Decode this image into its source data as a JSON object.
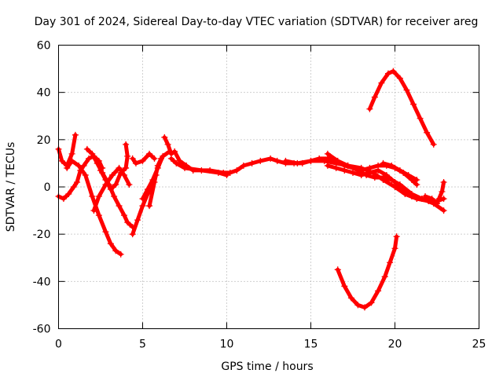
{
  "chart_data": {
    "type": "scatter",
    "title": "Day 301 of 2024, Sidereal Day-to-day VTEC variation (SDTVAR) for receiver areg",
    "xlabel": "GPS time / hours",
    "ylabel": "SDTVAR / TECUs",
    "xlim": [
      0,
      25
    ],
    "ylim": [
      -60,
      60
    ],
    "xticks": [
      0,
      5,
      10,
      15,
      20,
      25
    ],
    "yticks": [
      -60,
      -40,
      -20,
      0,
      20,
      40,
      60
    ],
    "xtick_labels": [
      "0",
      "5",
      "10",
      "15",
      "20",
      "25"
    ],
    "ytick_labels": [
      "-60",
      "-40",
      "-20",
      "0",
      "20",
      "40",
      "60"
    ],
    "grid": true,
    "marker": "plus",
    "color": "#ff0000",
    "series": [
      {
        "name": "s1",
        "points": [
          [
            0,
            -4
          ],
          [
            0.3,
            -5
          ],
          [
            0.6,
            -3
          ],
          [
            0.9,
            0
          ],
          [
            1.1,
            2
          ],
          [
            1.3,
            7
          ],
          [
            1.5,
            9
          ],
          [
            1.8,
            12
          ],
          [
            2.1,
            13
          ],
          [
            2.4,
            11
          ],
          [
            2.6,
            8
          ]
        ]
      },
      {
        "name": "s2",
        "points": [
          [
            0,
            16
          ],
          [
            0.2,
            11
          ],
          [
            0.5,
            9
          ],
          [
            0.8,
            14
          ],
          [
            1.0,
            22
          ]
        ]
      },
      {
        "name": "s3",
        "points": [
          [
            0.5,
            8
          ],
          [
            0.8,
            11
          ],
          [
            1.2,
            9
          ],
          [
            1.6,
            5
          ],
          [
            2.0,
            -4
          ],
          [
            2.4,
            -12
          ],
          [
            2.8,
            -19
          ],
          [
            3.1,
            -24
          ],
          [
            3.4,
            -27
          ],
          [
            3.7,
            -28.5
          ]
        ]
      },
      {
        "name": "s4",
        "points": [
          [
            1.7,
            16
          ],
          [
            2.0,
            14
          ],
          [
            2.3,
            10
          ],
          [
            2.6,
            6
          ],
          [
            3.0,
            1
          ],
          [
            3.3,
            -4
          ],
          [
            3.6,
            -8
          ],
          [
            3.9,
            -12
          ],
          [
            4.1,
            -15
          ],
          [
            4.4,
            -17
          ]
        ]
      },
      {
        "name": "s5",
        "points": [
          [
            2.1,
            -10
          ],
          [
            2.4,
            -4
          ],
          [
            2.8,
            1
          ],
          [
            3.2,
            5
          ],
          [
            3.6,
            8
          ],
          [
            3.9,
            5
          ],
          [
            4.2,
            1
          ]
        ]
      },
      {
        "name": "s6",
        "points": [
          [
            2.5,
            7
          ],
          [
            2.8,
            3
          ],
          [
            3.1,
            -1
          ],
          [
            3.4,
            1
          ],
          [
            3.7,
            6
          ],
          [
            4.0,
            8
          ],
          [
            4.1,
            13
          ],
          [
            4.0,
            18
          ]
        ]
      },
      {
        "name": "s7",
        "points": [
          [
            4.4,
            -20
          ],
          [
            4.7,
            -14
          ],
          [
            5.0,
            -8
          ],
          [
            5.3,
            -3
          ],
          [
            5.6,
            2
          ],
          [
            5.8,
            5
          ]
        ]
      },
      {
        "name": "s8",
        "points": [
          [
            5.4,
            -8
          ],
          [
            5.7,
            2
          ],
          [
            5.9,
            9
          ],
          [
            6.1,
            12
          ]
        ]
      },
      {
        "name": "s9",
        "points": [
          [
            4.4,
            12
          ],
          [
            4.6,
            10
          ],
          [
            5.0,
            11
          ],
          [
            5.4,
            14
          ],
          [
            5.7,
            12
          ]
        ]
      },
      {
        "name": "s10",
        "points": [
          [
            5.0,
            -5
          ],
          [
            5.3,
            -1
          ],
          [
            5.6,
            3
          ],
          [
            5.9,
            8
          ],
          [
            6.2,
            13
          ],
          [
            6.6,
            15
          ]
        ]
      },
      {
        "name": "s11",
        "points": [
          [
            6.3,
            21
          ],
          [
            6.5,
            18
          ],
          [
            6.7,
            14
          ],
          [
            6.9,
            15
          ],
          [
            7.2,
            11
          ],
          [
            7.6,
            9
          ],
          [
            8.0,
            7
          ],
          [
            9.0,
            7
          ],
          [
            9.8,
            6
          ],
          [
            10.2,
            6
          ],
          [
            10.6,
            7
          ],
          [
            11.0,
            9
          ],
          [
            11.5,
            10
          ],
          [
            12.0,
            11
          ],
          [
            12.6,
            12
          ],
          [
            13.0,
            11
          ],
          [
            13.5,
            10
          ],
          [
            14.0,
            10
          ],
          [
            14.5,
            10
          ],
          [
            15.0,
            11
          ],
          [
            15.5,
            12
          ],
          [
            16.0,
            12
          ],
          [
            16.5,
            11
          ],
          [
            17.0,
            9
          ],
          [
            17.5,
            8
          ],
          [
            18.0,
            7
          ],
          [
            18.5,
            8
          ],
          [
            19.0,
            9
          ],
          [
            19.5,
            9
          ],
          [
            20.0,
            8
          ],
          [
            20.5,
            6
          ],
          [
            21.0,
            3
          ],
          [
            21.3,
            1
          ]
        ]
      },
      {
        "name": "s12",
        "points": [
          [
            6.7,
            12
          ],
          [
            7.0,
            10
          ],
          [
            7.5,
            8
          ],
          [
            8.5,
            7
          ],
          [
            9.5,
            6
          ],
          [
            10.0,
            5
          ]
        ]
      },
      {
        "name": "s13",
        "points": [
          [
            13.5,
            11
          ],
          [
            14.2,
            10
          ],
          [
            15.0,
            11
          ],
          [
            15.8,
            11
          ],
          [
            16.5,
            10
          ],
          [
            17.2,
            9
          ],
          [
            18.0,
            8
          ],
          [
            18.7,
            6
          ],
          [
            19.3,
            3
          ],
          [
            20.0,
            0
          ],
          [
            20.6,
            -3
          ],
          [
            21.3,
            -5
          ],
          [
            22.0,
            -6
          ],
          [
            22.5,
            -6
          ],
          [
            22.9,
            -5
          ]
        ]
      },
      {
        "name": "s14",
        "points": [
          [
            16.0,
            14
          ],
          [
            16.6,
            11
          ],
          [
            17.2,
            9
          ],
          [
            17.8,
            7
          ],
          [
            18.3,
            5
          ],
          [
            18.8,
            4
          ],
          [
            19.3,
            4
          ],
          [
            19.8,
            3
          ],
          [
            20.3,
            1
          ],
          [
            21.0,
            -3
          ],
          [
            21.6,
            -5
          ],
          [
            22.3,
            -7
          ],
          [
            22.9,
            -10
          ]
        ]
      },
      {
        "name": "s15",
        "points": [
          [
            16.0,
            9
          ],
          [
            16.5,
            8
          ],
          [
            17.0,
            7
          ],
          [
            17.5,
            6
          ],
          [
            18.0,
            5
          ],
          [
            18.5,
            6
          ],
          [
            19.0,
            7
          ],
          [
            19.5,
            5
          ],
          [
            20.0,
            2
          ],
          [
            20.5,
            -2
          ],
          [
            21.0,
            -4
          ]
        ]
      },
      {
        "name": "s16",
        "points": [
          [
            19.3,
            10
          ],
          [
            19.8,
            9
          ],
          [
            20.3,
            7
          ],
          [
            20.8,
            5
          ],
          [
            21.3,
            3
          ]
        ]
      },
      {
        "name": "s17",
        "points": [
          [
            21.8,
            -4
          ],
          [
            22.2,
            -5
          ],
          [
            22.5,
            -7
          ],
          [
            22.8,
            -2
          ],
          [
            22.9,
            2
          ]
        ]
      },
      {
        "name": "s18",
        "points": [
          [
            18.5,
            33
          ],
          [
            18.8,
            38
          ],
          [
            19.2,
            44
          ],
          [
            19.6,
            48
          ],
          [
            19.9,
            49
          ],
          [
            20.3,
            46
          ],
          [
            20.7,
            41
          ],
          [
            21.1,
            35
          ],
          [
            21.5,
            29
          ],
          [
            21.9,
            23
          ],
          [
            22.3,
            18
          ]
        ]
      },
      {
        "name": "s19",
        "points": [
          [
            16.6,
            -35
          ],
          [
            17.0,
            -42
          ],
          [
            17.4,
            -47
          ],
          [
            17.8,
            -50
          ],
          [
            18.2,
            -51
          ],
          [
            18.6,
            -49
          ],
          [
            19.0,
            -44
          ],
          [
            19.4,
            -38
          ],
          [
            19.7,
            -32
          ],
          [
            20.0,
            -26
          ],
          [
            20.1,
            -21
          ]
        ]
      }
    ]
  }
}
